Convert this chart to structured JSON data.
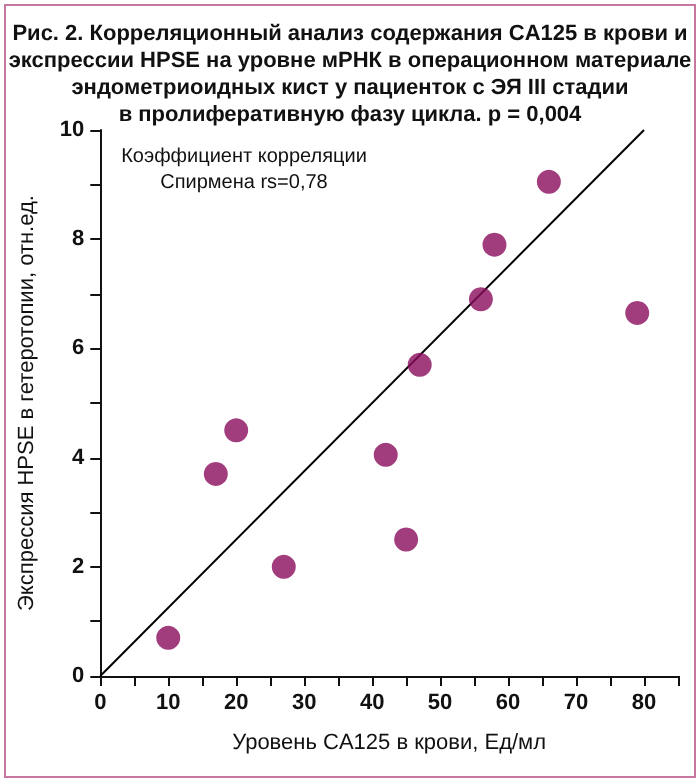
{
  "chart_data": {
    "type": "scatter",
    "title": "Рис. 2. Корреляционный анализ содержания CA125 в крови и\nэкспрессии HPSE на уровне мРНК в операционном материале\nэндометриоидных кист у пациенток с ЭЯ III стадии\nв пролиферативную фазу цикла. p = 0,004",
    "xlabel": "Уровень CA125 в крови, Ед/мл",
    "ylabel": "Экспрессия HPSE в гетеротопии, отн.ед.",
    "annotations": [
      "Коэффициент корреляции\nСпирмена rs=0,78"
    ],
    "x": [
      10,
      17,
      20,
      27,
      42,
      45,
      47,
      56,
      58,
      66,
      79
    ],
    "series": [
      {
        "color": "#8a0b5c",
        "values": [
          0.7,
          3.7,
          4.5,
          2.0,
          4.05,
          2.5,
          5.7,
          6.9,
          7.9,
          9.05,
          6.65
        ]
      },
      {
        "type": "line",
        "marker": "none",
        "color": "#000000",
        "x": [
          0,
          80
        ],
        "values": [
          0,
          10
        ]
      }
    ],
    "marker": "circle",
    "grid": false,
    "xlim": [
      0,
      85
    ],
    "xticks": [
      0,
      {
        "value": 5,
        "label": null
      },
      10,
      {
        "value": 15,
        "label": null
      },
      20,
      {
        "value": 25,
        "label": null
      },
      30,
      {
        "value": 35,
        "label": null
      },
      40,
      {
        "value": 45,
        "label": null
      },
      50,
      {
        "value": 55,
        "label": null
      },
      60,
      {
        "value": 65,
        "label": null
      },
      70,
      {
        "value": 75,
        "label": null
      },
      80,
      {
        "value": 85,
        "label": null
      }
    ],
    "ylim": [
      0,
      10
    ],
    "yticks": [
      0,
      {
        "value": 1,
        "label": null
      },
      2,
      {
        "value": 3,
        "label": null
      },
      4,
      {
        "value": 5,
        "label": null
      },
      6,
      {
        "value": 7,
        "label": null
      },
      8,
      {
        "value": 9,
        "label": null
      },
      10
    ]
  }
}
